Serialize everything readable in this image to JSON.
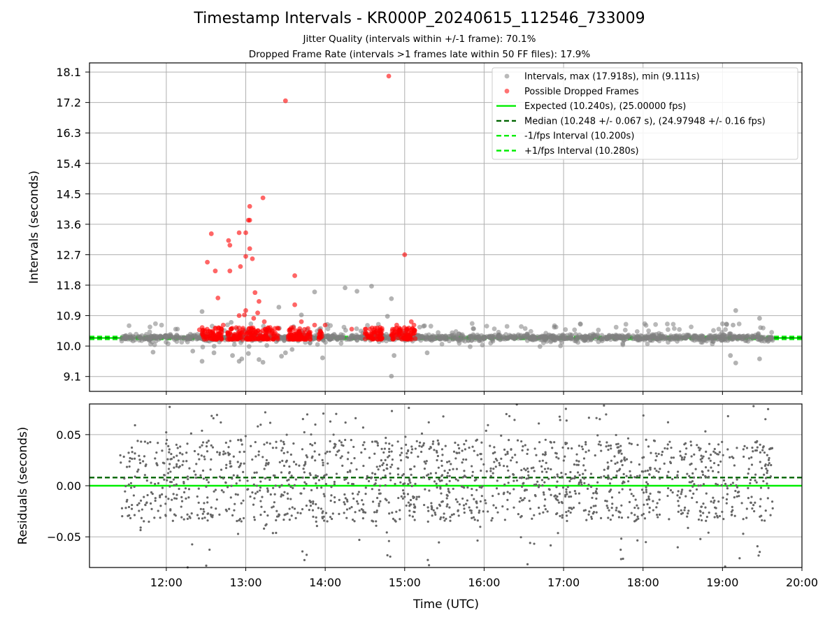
{
  "chart_data": [
    {
      "type": "scatter",
      "title": "Timestamp Intervals - KR000P_20240615_112546_733009",
      "subtitle1": "Jitter Quality (intervals within +/-1 frame): 70.1%",
      "subtitle2": "Dropped Frame Rate (intervals >1 frames late within 50 FF files): 17.9%",
      "ylabel": "Intervals (seconds)",
      "yticks": [
        "9.1",
        "10.0",
        "10.9",
        "11.8",
        "12.7",
        "13.6",
        "14.5",
        "15.4",
        "16.3",
        "17.2",
        "18.1"
      ],
      "ylim": [
        8.66,
        18.37
      ],
      "xlim": [
        "11:02",
        "20:00"
      ],
      "grid": true,
      "legend_position": "upper right",
      "series": [
        {
          "name": "Intervals, max (17.918s), min (9.111s)",
          "color": "#808080",
          "points": [
            [
              "12:27",
              11.02
            ],
            [
              "12:27",
              9.55
            ],
            [
              "12:36",
              9.8
            ],
            [
              "12:49",
              10.7
            ],
            [
              "12:50",
              9.72
            ],
            [
              "12:55",
              9.55
            ],
            [
              "12:57",
              9.62
            ],
            [
              "13:02",
              9.78
            ],
            [
              "13:10",
              9.6
            ],
            [
              "13:13",
              9.52
            ],
            [
              "13:25",
              11.15
            ],
            [
              "13:27",
              9.7
            ],
            [
              "13:30",
              9.8
            ],
            [
              "13:42",
              10.92
            ],
            [
              "13:52",
              11.6
            ],
            [
              "13:58",
              9.65
            ],
            [
              "14:15",
              11.72
            ],
            [
              "14:24",
              11.62
            ],
            [
              "14:35",
              11.77
            ],
            [
              "14:47",
              10.88
            ],
            [
              "14:50",
              11.4
            ],
            [
              "14:50",
              9.11
            ],
            [
              "14:52",
              9.72
            ],
            [
              "15:15",
              10.6
            ],
            [
              "15:17",
              9.8
            ],
            [
              "19:03",
              10.65
            ],
            [
              "19:06",
              9.72
            ],
            [
              "19:08",
              10.62
            ],
            [
              "19:10",
              11.05
            ],
            [
              "19:10",
              9.5
            ],
            [
              "19:28",
              10.82
            ],
            [
              "19:28",
              9.62
            ],
            [
              "11:50",
              9.82
            ],
            [
              "12:20",
              9.85
            ],
            [
              "13:35",
              9.9
            ]
          ],
          "dense_band": {
            "from": "11:25",
            "to": "19:38",
            "center": 10.25,
            "spread": 0.14
          }
        },
        {
          "name": "Possible Dropped Frames",
          "color": "#ff0000",
          "points": [
            [
              "12:31",
              12.48
            ],
            [
              "12:34",
              13.32
            ],
            [
              "12:37",
              12.22
            ],
            [
              "12:39",
              11.42
            ],
            [
              "12:47",
              13.12
            ],
            [
              "12:48",
              12.98
            ],
            [
              "12:48",
              12.22
            ],
            [
              "12:55",
              13.35
            ],
            [
              "12:56",
              12.35
            ],
            [
              "12:55",
              10.9
            ],
            [
              "13:00",
              13.35
            ],
            [
              "13:00",
              12.65
            ],
            [
              "13:00",
              11.05
            ],
            [
              "13:02",
              13.72
            ],
            [
              "13:03",
              12.88
            ],
            [
              "13:03",
              14.13
            ],
            [
              "13:03",
              13.72
            ],
            [
              "13:05",
              12.58
            ],
            [
              "13:07",
              11.58
            ],
            [
              "13:09",
              10.98
            ],
            [
              "13:10",
              11.32
            ],
            [
              "13:13",
              14.38
            ],
            [
              "13:14",
              10.72
            ],
            [
              "13:30",
              17.25
            ],
            [
              "13:37",
              12.08
            ],
            [
              "13:37",
              11.22
            ],
            [
              "13:42",
              10.72
            ],
            [
              "13:52",
              10.62
            ],
            [
              "14:00",
              10.62
            ],
            [
              "14:48",
              17.98
            ],
            [
              "14:54",
              10.62
            ],
            [
              "15:00",
              12.7
            ],
            [
              "15:05",
              10.72
            ],
            [
              "15:07",
              10.62
            ],
            [
              "12:25",
              10.48
            ],
            [
              "12:43",
              10.62
            ],
            [
              "12:59",
              10.92
            ],
            [
              "13:06",
              10.82
            ],
            [
              "13:36",
              10.55
            ],
            [
              "13:47",
              10.52
            ],
            [
              "14:20",
              10.5
            ],
            [
              "14:39",
              10.45
            ]
          ],
          "clusters": [
            {
              "from": "12:27",
              "to": "12:42"
            },
            {
              "from": "12:46",
              "to": "12:58"
            },
            {
              "from": "13:00",
              "to": "13:25"
            },
            {
              "from": "13:32",
              "to": "13:50"
            },
            {
              "from": "13:55",
              "to": "13:58"
            },
            {
              "from": "14:30",
              "to": "14:43"
            },
            {
              "from": "14:50",
              "to": "15:08"
            }
          ],
          "cluster_range": [
            10.2,
            10.55
          ]
        }
      ],
      "lines": [
        {
          "name": "Expected (10.240s), (25.00000 fps)",
          "value": 10.24,
          "color": "#00ee00",
          "style": "solid"
        },
        {
          "name": "Median (10.248 +/- 0.067 s), (24.97948 +/- 0.16 fps)",
          "value": 10.248,
          "color": "#006400",
          "style": "dashed"
        },
        {
          "name": "-1/fps Interval (10.200s)",
          "value": 10.2,
          "color": "#00ee00",
          "style": "dashed"
        },
        {
          "name": "+1/fps Interval (10.280s)",
          "value": 10.28,
          "color": "#00ee00",
          "style": "dashed"
        }
      ]
    },
    {
      "type": "scatter",
      "ylabel": "Residuals (seconds)",
      "xlabel": "Time (UTC)",
      "yticks": [
        "0.05",
        "0.00",
        "−0.05"
      ],
      "ytick_values": [
        0.05,
        0.0,
        -0.05
      ],
      "ylim": [
        -0.08,
        0.08
      ],
      "xticks": [
        "12:00",
        "13:00",
        "14:00",
        "15:00",
        "16:00",
        "17:00",
        "18:00",
        "19:00",
        "20:00"
      ],
      "xlim": [
        "11:02",
        "20:00"
      ],
      "grid": true,
      "series": [
        {
          "color": "#666666",
          "from": "11:25",
          "to": "19:38",
          "count": 1650,
          "core_range": [
            -0.035,
            0.045
          ],
          "outlier_range": [
            -0.08,
            0.08
          ]
        }
      ],
      "lines": [
        {
          "value": 0.0,
          "color": "#00ee00",
          "style": "solid"
        },
        {
          "value": 0.008,
          "color": "#006400",
          "style": "dashed"
        }
      ]
    }
  ]
}
